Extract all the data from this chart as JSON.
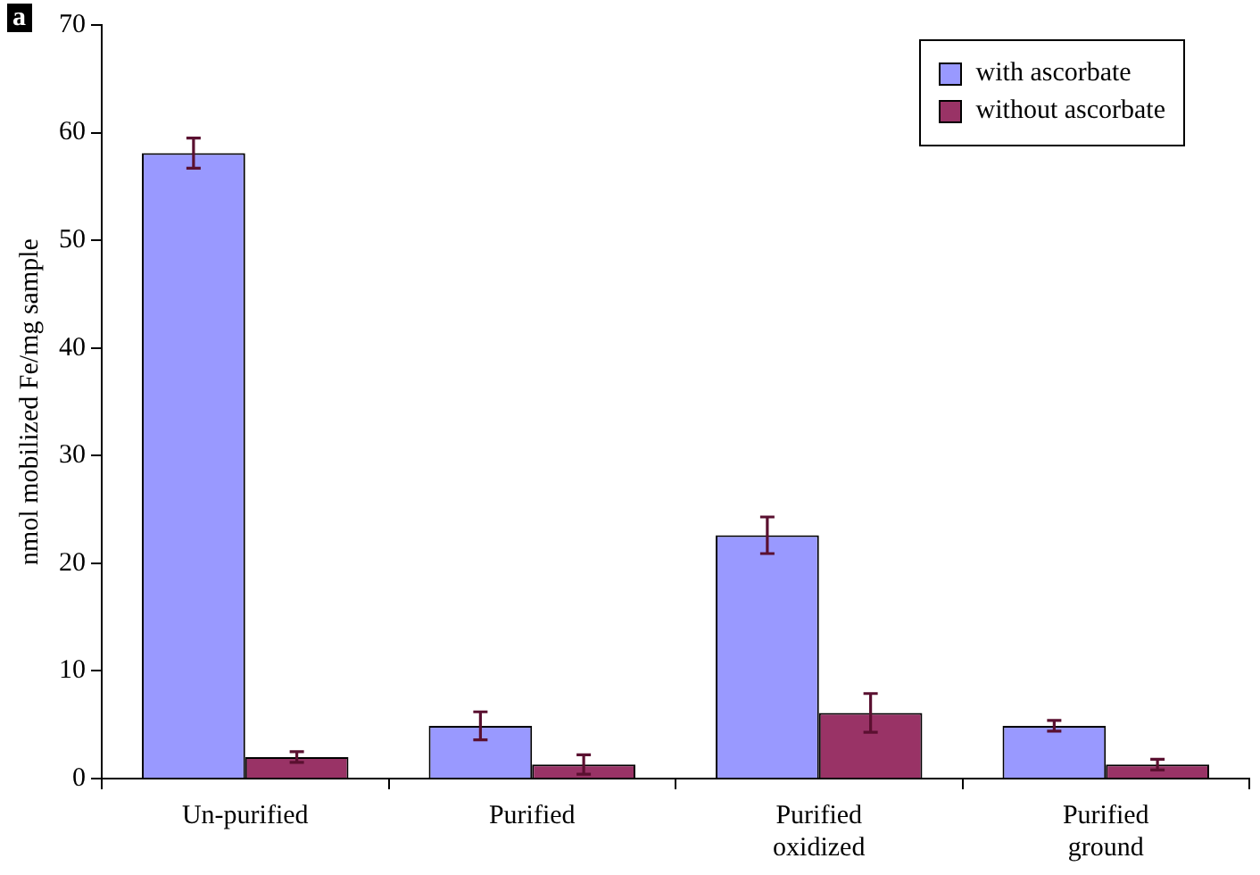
{
  "chart_data": {
    "type": "bar",
    "ylabel": "nmol mobilized Fe/mg sample",
    "annotations": [
      "a"
    ],
    "categories": [
      "Un-purified",
      "Purified",
      "Purified oxidized",
      "Purified ground"
    ],
    "series": [
      {
        "name": "with ascorbate",
        "color": "#9999ff",
        "values": [
          58.1,
          4.9,
          22.6,
          4.9
        ],
        "errors": [
          1.4,
          1.3,
          1.7,
          0.5
        ]
      },
      {
        "name": "without ascorbate",
        "color": "#993366",
        "values": [
          2.0,
          1.3,
          6.1,
          1.3
        ],
        "errors": [
          0.5,
          0.9,
          1.8,
          0.5
        ]
      }
    ],
    "ylim": [
      0,
      70
    ],
    "yticks": [
      0,
      10,
      20,
      30,
      40,
      50,
      60,
      70
    ],
    "grid": false,
    "legend": "top right"
  }
}
